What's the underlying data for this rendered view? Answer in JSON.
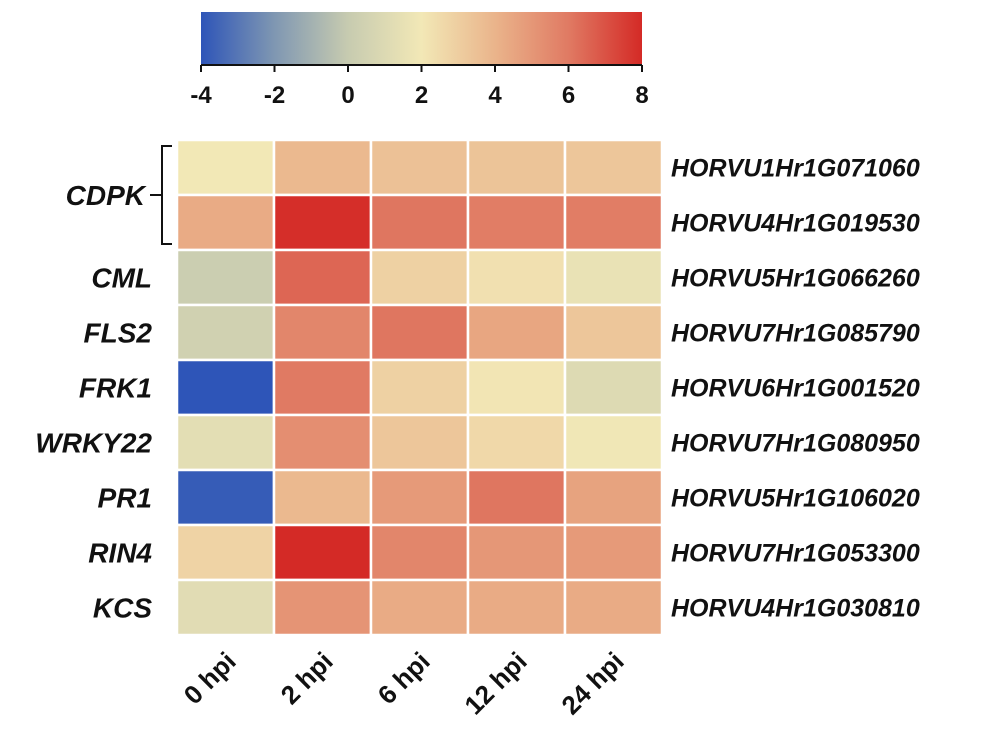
{
  "chart_data": {
    "type": "heatmap",
    "title": "",
    "colorbar": {
      "min": -4,
      "max": 8,
      "ticks": [
        "-4",
        "-2",
        "0",
        "2",
        "4",
        "6",
        "8"
      ],
      "stops": [
        {
          "value": -4,
          "color": "#2e55b8"
        },
        {
          "value": -2,
          "color": "#7f97b2"
        },
        {
          "value": 0,
          "color": "#c7cbb0"
        },
        {
          "value": 2,
          "color": "#f2e8b6"
        },
        {
          "value": 4,
          "color": "#eab48b"
        },
        {
          "value": 6,
          "color": "#e07a63"
        },
        {
          "value": 8,
          "color": "#d42a26"
        }
      ]
    },
    "columns": [
      "0 hpi",
      "2 hpi",
      "6 hpi",
      "12 hpi",
      "24 hpi"
    ],
    "rows": [
      {
        "gene_id": "HORVU1Hr1G071060",
        "values": [
          2.0,
          3.8,
          3.5,
          3.4,
          3.3
        ]
      },
      {
        "gene_id": "HORVU4Hr1G019530",
        "values": [
          4.3,
          7.9,
          6.1,
          5.9,
          5.9
        ]
      },
      {
        "gene_id": "HORVU5Hr1G066260",
        "values": [
          0.2,
          6.5,
          2.9,
          2.3,
          1.6
        ]
      },
      {
        "gene_id": "HORVU7Hr1G085790",
        "values": [
          0.4,
          5.6,
          6.1,
          4.5,
          3.3
        ]
      },
      {
        "gene_id": "HORVU6Hr1G001520",
        "values": [
          -4.0,
          6.0,
          2.9,
          2.1,
          1.0
        ]
      },
      {
        "gene_id": "HORVU7Hr1G080950",
        "values": [
          1.3,
          5.3,
          3.3,
          2.6,
          1.9
        ]
      },
      {
        "gene_id": "HORVU5Hr1G106020",
        "values": [
          -3.8,
          3.8,
          4.9,
          6.1,
          4.6
        ]
      },
      {
        "gene_id": "HORVU7Hr1G053300",
        "values": [
          2.8,
          8.0,
          5.6,
          5.0,
          4.9
        ]
      },
      {
        "gene_id": "HORVU4Hr1G030810",
        "values": [
          1.2,
          5.1,
          4.3,
          4.3,
          4.3
        ]
      }
    ],
    "groups": [
      {
        "label": "CDPK",
        "rows": [
          0,
          1
        ],
        "bracket": true
      },
      {
        "label": "CML",
        "rows": [
          2
        ]
      },
      {
        "label": "FLS2",
        "rows": [
          3
        ]
      },
      {
        "label": "FRK1",
        "rows": [
          4
        ]
      },
      {
        "label": "WRKY22",
        "rows": [
          5
        ]
      },
      {
        "label": "PR1",
        "rows": [
          6
        ]
      },
      {
        "label": "RIN4",
        "rows": [
          7
        ]
      },
      {
        "label": "KCS",
        "rows": [
          8
        ]
      }
    ]
  }
}
